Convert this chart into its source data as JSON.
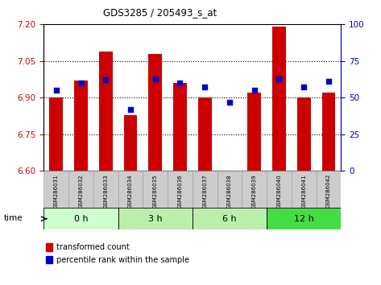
{
  "title": "GDS3285 / 205493_s_at",
  "samples": [
    "GSM286031",
    "GSM286032",
    "GSM286033",
    "GSM286034",
    "GSM286035",
    "GSM286036",
    "GSM286037",
    "GSM286038",
    "GSM286039",
    "GSM286040",
    "GSM286041",
    "GSM286042"
  ],
  "transformed_counts": [
    6.9,
    6.97,
    7.09,
    6.83,
    7.08,
    6.96,
    6.9,
    6.6,
    6.92,
    7.19,
    6.9,
    6.92
  ],
  "percentile_ranks": [
    55,
    60,
    62,
    42,
    63,
    60,
    57,
    47,
    55,
    63,
    57,
    61
  ],
  "ylim_left": [
    6.6,
    7.2
  ],
  "ylim_right": [
    0,
    100
  ],
  "yticks_left": [
    6.6,
    6.75,
    6.9,
    7.05,
    7.2
  ],
  "yticks_right": [
    0,
    25,
    50,
    75,
    100
  ],
  "bar_color": "#cc0000",
  "dot_color": "#0000cc",
  "bar_bottom": 6.6,
  "group_boundaries": [
    [
      0,
      2,
      "0 h",
      "#ccffcc"
    ],
    [
      3,
      5,
      "3 h",
      "#bbeeaa"
    ],
    [
      6,
      8,
      "6 h",
      "#bbeeaa"
    ],
    [
      9,
      11,
      "12 h",
      "#44dd44"
    ]
  ],
  "legend_bar_label": "transformed count",
  "legend_dot_label": "percentile rank within the sample",
  "tick_color_left": "#cc0000",
  "tick_color_right": "#0000cc",
  "bg_color": "#ffffff",
  "sample_bg": "#cccccc"
}
